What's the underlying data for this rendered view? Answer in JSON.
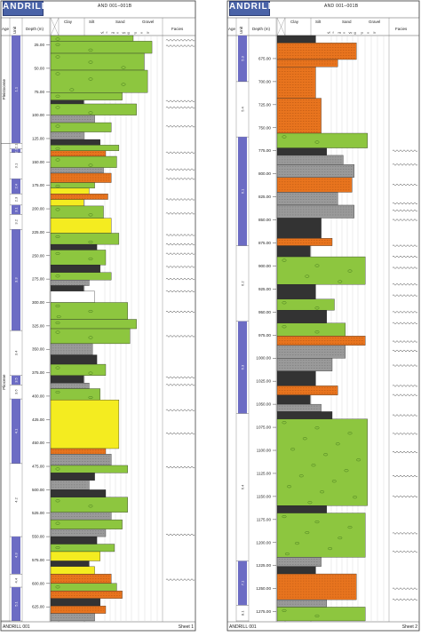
{
  "logo_text": "ANDRILL",
  "core_id": "AND 001–001B",
  "columns": {
    "age": "Age",
    "unit": "Unit",
    "depth": "Depth (m)",
    "clay": "Clay",
    "silt": "Silt",
    "sand": "Sand",
    "gravel": "Gravel",
    "facies": "Facies",
    "grain_codes": [
      "vf",
      "f",
      "m",
      "c",
      "vc",
      "g",
      "p",
      "c",
      "b"
    ]
  },
  "footer": {
    "left": "ANDRILL 001",
    "sheet1": "Sheet 1",
    "sheet2": "Sheet 2"
  },
  "sheet1": {
    "depth_min": 15,
    "depth_max": 640,
    "depth_ticks": [
      "25.00",
      "50.00",
      "75.00",
      "100.00",
      "125.00",
      "150.00",
      "175.00",
      "200.00",
      "225.00",
      "250.00",
      "275.00",
      "300.00",
      "325.00",
      "350.00",
      "375.00",
      "400.00",
      "425.00",
      "450.00",
      "475.00",
      "500.00",
      "525.00",
      "550.00",
      "575.00",
      "600.00",
      "625.00"
    ],
    "ages": [
      {
        "label": "Pleistocene",
        "from": 15,
        "to": 130
      },
      {
        "label": "Pliocene",
        "from": 130,
        "to": 640
      }
    ],
    "units": [
      {
        "label": "1.1",
        "from": 15,
        "to": 130
      },
      {
        "label": "2.1",
        "from": 130,
        "to": 136
      },
      {
        "label": "2.2",
        "from": 136,
        "to": 140
      },
      {
        "label": "3.1",
        "from": 140,
        "to": 168
      },
      {
        "label": "2.4",
        "from": 168,
        "to": 184
      },
      {
        "label": "2.3",
        "from": 184,
        "to": 196
      },
      {
        "label": "3.1",
        "from": 196,
        "to": 206
      },
      {
        "label": "3.2",
        "from": 206,
        "to": 222
      },
      {
        "label": "3.3",
        "from": 222,
        "to": 330
      },
      {
        "label": "3.4",
        "from": 330,
        "to": 378
      },
      {
        "label": "3.5",
        "from": 378,
        "to": 388
      },
      {
        "label": "3.6",
        "from": 388,
        "to": 403
      },
      {
        "label": "4.1",
        "from": 403,
        "to": 472
      },
      {
        "label": "4.2",
        "from": 472,
        "to": 550
      },
      {
        "label": "4.3",
        "from": 550,
        "to": 590
      },
      {
        "label": "4.4",
        "from": 590,
        "to": 604
      },
      {
        "label": "5.1",
        "from": 604,
        "to": 640
      }
    ]
  },
  "sheet2": {
    "depth_min": 650,
    "depth_max": 1285,
    "depth_ticks": [
      "675.00",
      "700.00",
      "725.00",
      "750.00",
      "775.00",
      "800.00",
      "825.00",
      "850.00",
      "875.00",
      "900.00",
      "925.00",
      "950.00",
      "975.00",
      "1000.00",
      "1025.00",
      "1050.00",
      "1075.00",
      "1100.00",
      "1125.00",
      "1150.00",
      "1175.00",
      "1200.00",
      "1225.00",
      "1250.00",
      "1275.00"
    ],
    "units": [
      {
        "label": "5.3",
        "from": 650,
        "to": 700
      },
      {
        "label": "5.4",
        "from": 700,
        "to": 760
      },
      {
        "label": "6.1",
        "from": 760,
        "to": 878
      },
      {
        "label": "6.2",
        "from": 878,
        "to": 960
      },
      {
        "label": "6.3",
        "from": 960,
        "to": 1060
      },
      {
        "label": "6.4",
        "from": 1060,
        "to": 1220
      },
      {
        "label": "7.1",
        "from": 1220,
        "to": 1268
      },
      {
        "label": "8.1",
        "from": 1268,
        "to": 1285
      }
    ]
  },
  "lithology_colors": {
    "diamictite": "#8dc63f",
    "sandstone": "#f4ec20",
    "mudstone": "#9a9a9a",
    "volcanic": "#e8741e",
    "diatomite": "#ffffff",
    "dark": "#333333",
    "unit_blue": "#6c6cc4"
  },
  "sheet1_beds": [
    {
      "from": 15,
      "to": 21,
      "lith": "diamictite",
      "g": 0.75
    },
    {
      "from": 21,
      "to": 34,
      "lith": "diamictite",
      "g": 0.92
    },
    {
      "from": 34,
      "to": 52,
      "lith": "diamictite",
      "g": 0.85
    },
    {
      "from": 52,
      "to": 76,
      "lith": "diamictite",
      "g": 0.88
    },
    {
      "from": 76,
      "to": 84,
      "lith": "diamictite",
      "g": 0.65
    },
    {
      "from": 84,
      "to": 88,
      "lith": "dark",
      "g": 0.3
    },
    {
      "from": 88,
      "to": 100,
      "lith": "diamictite",
      "g": 0.78
    },
    {
      "from": 100,
      "to": 108,
      "lith": "mudstone",
      "g": 0.4
    },
    {
      "from": 108,
      "to": 118,
      "lith": "diamictite",
      "g": 0.55
    },
    {
      "from": 118,
      "to": 126,
      "lith": "mudstone",
      "g": 0.3
    },
    {
      "from": 126,
      "to": 132,
      "lith": "dark",
      "g": 0.45
    },
    {
      "from": 132,
      "to": 138,
      "lith": "diamictite",
      "g": 0.62
    },
    {
      "from": 138,
      "to": 144,
      "lith": "volcanic",
      "g": 0.5
    },
    {
      "from": 144,
      "to": 156,
      "lith": "diamictite",
      "g": 0.6
    },
    {
      "from": 156,
      "to": 162,
      "lith": "mudstone",
      "g": 0.48
    },
    {
      "from": 162,
      "to": 172,
      "lith": "volcanic",
      "g": 0.55
    },
    {
      "from": 172,
      "to": 178,
      "lith": "diamictite",
      "g": 0.4
    },
    {
      "from": 178,
      "to": 184,
      "lith": "sandstone",
      "g": 0.35
    },
    {
      "from": 184,
      "to": 190,
      "lith": "volcanic",
      "g": 0.52
    },
    {
      "from": 190,
      "to": 197,
      "lith": "sandstone",
      "g": 0.3
    },
    {
      "from": 197,
      "to": 210,
      "lith": "diamictite",
      "g": 0.48
    },
    {
      "from": 210,
      "to": 226,
      "lith": "sandstone",
      "g": 0.55
    },
    {
      "from": 226,
      "to": 238,
      "lith": "diamictite",
      "g": 0.62
    },
    {
      "from": 238,
      "to": 244,
      "lith": "dark",
      "g": 0.42
    },
    {
      "from": 244,
      "to": 260,
      "lith": "diamictite",
      "g": 0.5
    },
    {
      "from": 260,
      "to": 268,
      "lith": "dark",
      "g": 0.45
    },
    {
      "from": 268,
      "to": 276,
      "lith": "diamictite",
      "g": 0.55
    },
    {
      "from": 276,
      "to": 282,
      "lith": "mudstone",
      "g": 0.35
    },
    {
      "from": 282,
      "to": 288,
      "lith": "dark",
      "g": 0.3
    },
    {
      "from": 288,
      "to": 300,
      "lith": "diatomite",
      "g": 0.4
    },
    {
      "from": 300,
      "to": 318,
      "lith": "diamictite",
      "g": 0.7
    },
    {
      "from": 318,
      "to": 328,
      "lith": "diamictite",
      "g": 0.78
    },
    {
      "from": 328,
      "to": 344,
      "lith": "diamictite",
      "g": 0.72
    },
    {
      "from": 344,
      "to": 356,
      "lith": "mudstone",
      "g": 0.38
    },
    {
      "from": 356,
      "to": 366,
      "lith": "dark",
      "g": 0.42
    },
    {
      "from": 366,
      "to": 378,
      "lith": "diamictite",
      "g": 0.5
    },
    {
      "from": 378,
      "to": 386,
      "lith": "dark",
      "g": 0.3
    },
    {
      "from": 386,
      "to": 392,
      "lith": "mudstone",
      "g": 0.35
    },
    {
      "from": 392,
      "to": 404,
      "lith": "diamictite",
      "g": 0.45
    },
    {
      "from": 404,
      "to": 456,
      "lith": "sandstone",
      "g": 0.62
    },
    {
      "from": 456,
      "to": 462,
      "lith": "volcanic",
      "g": 0.5
    },
    {
      "from": 462,
      "to": 474,
      "lith": "mudstone",
      "g": 0.55
    },
    {
      "from": 474,
      "to": 482,
      "lith": "diamictite",
      "g": 0.7
    },
    {
      "from": 482,
      "to": 490,
      "lith": "dark",
      "g": 0.4
    },
    {
      "from": 490,
      "to": 500,
      "lith": "mudstone",
      "g": 0.35
    },
    {
      "from": 500,
      "to": 508,
      "lith": "dark",
      "g": 0.5
    },
    {
      "from": 508,
      "to": 524,
      "lith": "diamictite",
      "g": 0.7
    },
    {
      "from": 524,
      "to": 532,
      "lith": "mudstone",
      "g": 0.55
    },
    {
      "from": 532,
      "to": 542,
      "lith": "diamictite",
      "g": 0.65
    },
    {
      "from": 542,
      "to": 550,
      "lith": "mudstone",
      "g": 0.5
    },
    {
      "from": 550,
      "to": 558,
      "lith": "dark",
      "g": 0.42
    },
    {
      "from": 558,
      "to": 566,
      "lith": "diamictite",
      "g": 0.58
    },
    {
      "from": 566,
      "to": 576,
      "lith": "sandstone",
      "g": 0.45
    },
    {
      "from": 576,
      "to": 582,
      "lith": "dark",
      "g": 0.35
    },
    {
      "from": 582,
      "to": 590,
      "lith": "sandstone",
      "g": 0.4
    },
    {
      "from": 590,
      "to": 600,
      "lith": "volcanic",
      "g": 0.55
    },
    {
      "from": 600,
      "to": 608,
      "lith": "diamictite",
      "g": 0.6
    },
    {
      "from": 608,
      "to": 616,
      "lith": "volcanic",
      "g": 0.65
    },
    {
      "from": 616,
      "to": 624,
      "lith": "dark",
      "g": 0.45
    },
    {
      "from": 624,
      "to": 632,
      "lith": "volcanic",
      "g": 0.5
    },
    {
      "from": 632,
      "to": 640,
      "lith": "mudstone",
      "g": 0.4
    }
  ],
  "sheet2_beds": [
    {
      "from": 650,
      "to": 658,
      "lith": "dark",
      "g": 0.35
    },
    {
      "from": 658,
      "to": 676,
      "lith": "volcanic",
      "g": 0.72
    },
    {
      "from": 676,
      "to": 684,
      "lith": "volcanic",
      "g": 0.55
    },
    {
      "from": 684,
      "to": 718,
      "lith": "volcanic",
      "g": 0.35
    },
    {
      "from": 718,
      "to": 756,
      "lith": "volcanic",
      "g": 0.4
    },
    {
      "from": 756,
      "to": 772,
      "lith": "diamictite",
      "g": 0.82
    },
    {
      "from": 772,
      "to": 780,
      "lith": "dark",
      "g": 0.45
    },
    {
      "from": 780,
      "to": 790,
      "lith": "mudstone",
      "g": 0.6
    },
    {
      "from": 790,
      "to": 804,
      "lith": "mudstone",
      "g": 0.7
    },
    {
      "from": 804,
      "to": 820,
      "lith": "volcanic",
      "g": 0.68
    },
    {
      "from": 820,
      "to": 834,
      "lith": "mudstone",
      "g": 0.55
    },
    {
      "from": 834,
      "to": 848,
      "lith": "mudstone",
      "g": 0.7
    },
    {
      "from": 848,
      "to": 870,
      "lith": "dark",
      "g": 0.4
    },
    {
      "from": 870,
      "to": 878,
      "lith": "volcanic",
      "g": 0.5
    },
    {
      "from": 878,
      "to": 890,
      "lith": "dark",
      "g": 0.3
    },
    {
      "from": 890,
      "to": 920,
      "lith": "diamictite",
      "g": 0.8
    },
    {
      "from": 920,
      "to": 936,
      "lith": "dark",
      "g": 0.35
    },
    {
      "from": 936,
      "to": 948,
      "lith": "diamictite",
      "g": 0.52
    },
    {
      "from": 948,
      "to": 962,
      "lith": "dark",
      "g": 0.45
    },
    {
      "from": 962,
      "to": 976,
      "lith": "diamictite",
      "g": 0.62
    },
    {
      "from": 976,
      "to": 986,
      "lith": "volcanic",
      "g": 0.8
    },
    {
      "from": 986,
      "to": 1000,
      "lith": "mudstone",
      "g": 0.62
    },
    {
      "from": 1000,
      "to": 1014,
      "lith": "mudstone",
      "g": 0.5
    },
    {
      "from": 1014,
      "to": 1030,
      "lith": "dark",
      "g": 0.35
    },
    {
      "from": 1030,
      "to": 1040,
      "lith": "volcanic",
      "g": 0.55
    },
    {
      "from": 1040,
      "to": 1050,
      "lith": "dark",
      "g": 0.3
    },
    {
      "from": 1050,
      "to": 1058,
      "lith": "mudstone",
      "g": 0.4
    },
    {
      "from": 1058,
      "to": 1066,
      "lith": "dark",
      "g": 0.5
    },
    {
      "from": 1066,
      "to": 1160,
      "lith": "diamictite",
      "g": 0.82
    },
    {
      "from": 1160,
      "to": 1168,
      "lith": "dark",
      "g": 0.45
    },
    {
      "from": 1168,
      "to": 1216,
      "lith": "diamictite",
      "g": 0.8
    },
    {
      "from": 1216,
      "to": 1226,
      "lith": "mudstone",
      "g": 0.4
    },
    {
      "from": 1226,
      "to": 1234,
      "lith": "dark",
      "g": 0.35
    },
    {
      "from": 1234,
      "to": 1262,
      "lith": "volcanic",
      "g": 0.72
    },
    {
      "from": 1262,
      "to": 1270,
      "lith": "mudstone",
      "g": 0.45
    },
    {
      "from": 1270,
      "to": 1285,
      "lith": "diamictite",
      "g": 0.8
    }
  ],
  "sheet1_facies_at": [
    20,
    26,
    85,
    92,
    112,
    140,
    158,
    168,
    190,
    205,
    228,
    238,
    248,
    262,
    275,
    288,
    310,
    336,
    380,
    388,
    415,
    440,
    476,
    548,
    596
  ],
  "sheet2_facies_at": [
    775,
    790,
    812,
    832,
    840,
    850,
    878,
    890,
    902,
    920,
    932,
    950,
    962,
    982,
    992,
    1008,
    1030,
    1040,
    1062,
    1082,
    1102,
    1128,
    1150,
    1190,
    1210,
    1250,
    1262
  ]
}
